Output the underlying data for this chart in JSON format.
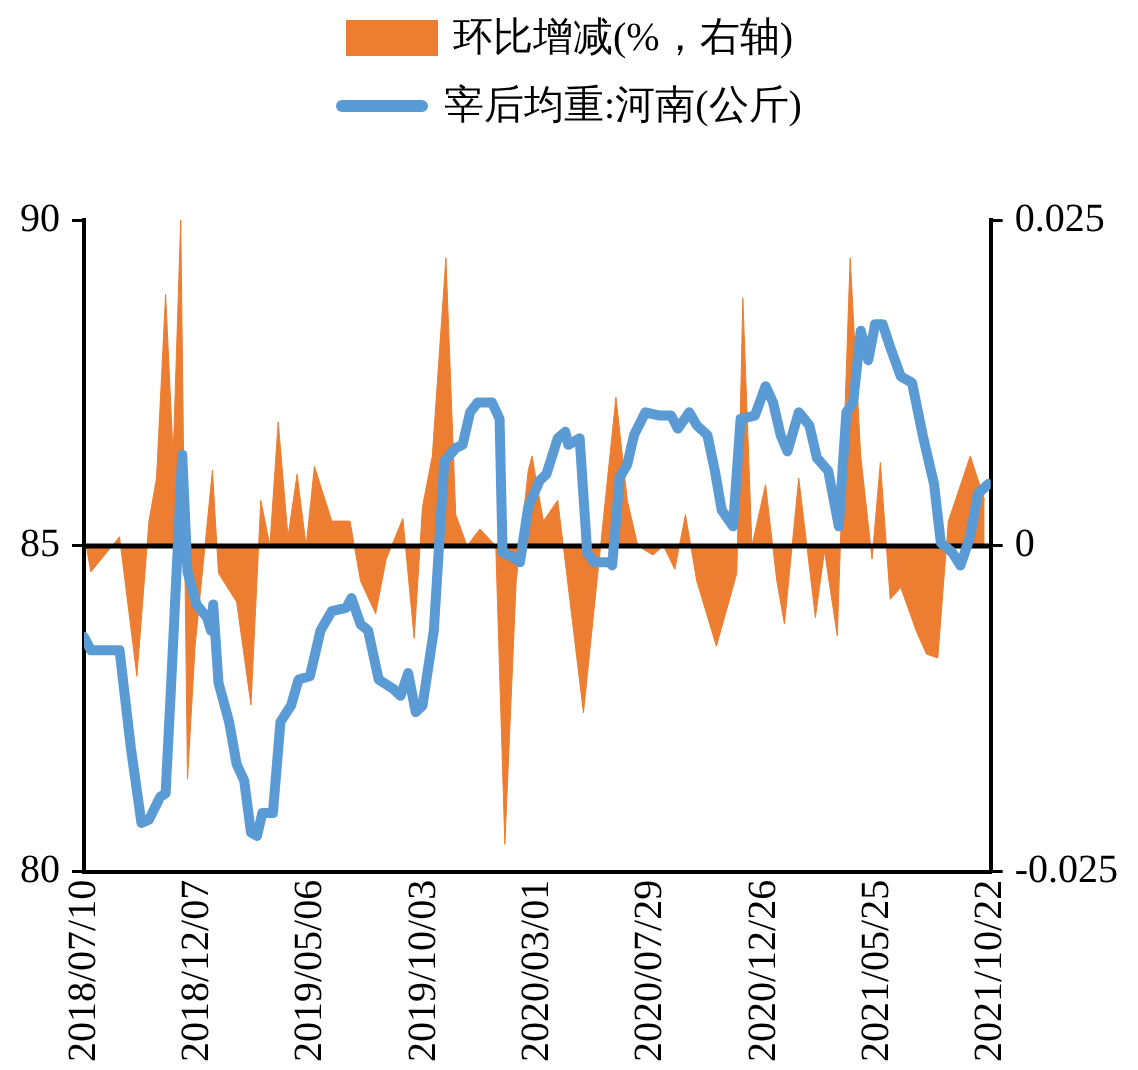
{
  "chart_data": {
    "type": "line",
    "legend": "top",
    "grid": false,
    "xlim": [
      "2018-07-10",
      "2021-10-22"
    ],
    "xticks": [
      {
        "value": "2018-07-10",
        "label": "2018/07/10"
      },
      {
        "value": "2018-12-07",
        "label": "2018/12/07"
      },
      {
        "value": "2019-05-06",
        "label": "2019/05/06"
      },
      {
        "value": "2019-10-03",
        "label": "2019/10/03"
      },
      {
        "value": "2020-03-01",
        "label": "2020/03/01"
      },
      {
        "value": "2020-07-29",
        "label": "2020/07/29"
      },
      {
        "value": "2020-12-26",
        "label": "2020/12/26"
      },
      {
        "value": "2021-05-25",
        "label": "2021/05/25"
      },
      {
        "value": "2021-10-22",
        "label": "2021/10/22"
      }
    ],
    "ylim": [
      80,
      90
    ],
    "yticks": [
      80,
      85,
      90
    ],
    "y2lim": [
      -0.025,
      0.025
    ],
    "y2ticks": [
      -0.025,
      0,
      0.025
    ],
    "ref_lines": [
      {
        "axis": "y2",
        "value": 0,
        "color": "#000000"
      }
    ],
    "series": [
      {
        "name": "环比增减(%，右轴)",
        "type": "area",
        "axis": "y2",
        "color": "#ed7d31",
        "x": [
          "2018-07-13",
          "2018-07-19",
          "2018-08-26",
          "2018-09-18",
          "2018-10-04",
          "2018-10-14",
          "2018-10-26",
          "2018-11-05",
          "2018-11-15",
          "2018-11-24",
          "2018-12-04",
          "2018-12-27",
          "2019-01-04",
          "2019-01-28",
          "2019-02-16",
          "2019-03-01",
          "2019-03-13",
          "2019-03-24",
          "2019-04-06",
          "2019-04-18",
          "2019-04-30",
          "2019-05-11",
          "2019-06-03",
          "2019-06-27",
          "2019-07-11",
          "2019-07-31",
          "2019-08-14",
          "2019-09-05",
          "2019-09-20",
          "2019-10-01",
          "2019-10-14",
          "2019-11-01",
          "2019-11-14",
          "2019-11-29",
          "2019-12-16",
          "2020-01-06",
          "2020-01-18",
          "2020-02-02",
          "2020-02-18",
          "2020-02-23",
          "2020-03-09",
          "2020-03-28",
          "2020-04-10",
          "2020-05-01",
          "2020-05-20",
          "2020-06-13",
          "2020-06-28",
          "2020-07-12",
          "2020-08-01",
          "2020-08-15",
          "2020-08-30",
          "2020-09-13",
          "2020-09-28",
          "2020-10-24",
          "2020-11-20",
          "2020-11-28",
          "2020-12-10",
          "2020-12-28",
          "2021-01-12",
          "2021-01-22",
          "2021-02-10",
          "2021-03-04",
          "2021-03-16",
          "2021-04-02",
          "2021-04-19",
          "2021-05-03",
          "2021-05-18",
          "2021-05-29",
          "2021-06-11",
          "2021-06-25",
          "2021-07-16",
          "2021-07-29",
          "2021-08-13",
          "2021-08-27",
          "2021-09-25",
          "2021-10-14"
        ],
        "values": [
          0,
          -0.002,
          0.0007,
          -0.01,
          0.0019,
          0.0052,
          0.0193,
          0.0069,
          0.025,
          -0.0179,
          -0.0077,
          0.0058,
          -0.0021,
          -0.0043,
          -0.0122,
          0.0035,
          0,
          0.0095,
          0.0007,
          0.0055,
          0,
          0.0061,
          0.0019,
          0.0019,
          -0.0027,
          -0.0052,
          -0.001,
          0.0021,
          -0.0071,
          0.003,
          0.0069,
          0.0221,
          0.0024,
          0,
          0.0013,
          0,
          -0.0229,
          -0.0027,
          0.0058,
          0.0069,
          0.0019,
          0.0035,
          -0.0027,
          -0.0128,
          -0.0021,
          0.0114,
          0.0035,
          0,
          -0.0007,
          0,
          -0.0018,
          0.0024,
          -0.0027,
          -0.0077,
          -0.0021,
          0.019,
          0,
          0.0047,
          -0.0027,
          -0.006,
          0.0052,
          -0.0055,
          -0.0004,
          -0.0069,
          0.0221,
          0.0069,
          -0.001,
          0.0064,
          -0.0041,
          -0.0032,
          -0.0066,
          -0.0083,
          -0.0086,
          0.0019,
          0.0069,
          0.0035
        ]
      },
      {
        "name": "宰后均重:河南(公斤)",
        "color": "#5b9bd5",
        "x": [
          "2018-07-10",
          "2018-07-19",
          "2018-08-26",
          "2018-09-02",
          "2018-09-10",
          "2018-09-24",
          "2018-10-04",
          "2018-10-19",
          "2018-10-26",
          "2018-11-02",
          "2018-11-17",
          "2018-11-24",
          "2018-12-06",
          "2018-12-20",
          "2018-12-25",
          "2018-12-28",
          "2019-01-04",
          "2019-01-18",
          "2019-01-28",
          "2019-02-07",
          "2019-02-16",
          "2019-02-24",
          "2019-03-03",
          "2019-03-17",
          "2019-03-27",
          "2019-04-10",
          "2019-04-20",
          "2019-05-05",
          "2019-05-19",
          "2019-06-03",
          "2019-06-22",
          "2019-06-29",
          "2019-07-11",
          "2019-07-21",
          "2019-08-04",
          "2019-08-24",
          "2019-09-02",
          "2019-09-12",
          "2019-09-22",
          "2019-10-01",
          "2019-10-16",
          "2019-10-25",
          "2019-10-30",
          "2019-11-14",
          "2019-11-23",
          "2019-12-03",
          "2019-12-13",
          "2020-01-01",
          "2020-01-11",
          "2020-01-15",
          "2020-01-25",
          "2020-02-07",
          "2020-02-18",
          "2020-03-04",
          "2020-03-13",
          "2020-03-28",
          "2020-04-07",
          "2020-04-11",
          "2020-04-26",
          "2020-05-06",
          "2020-05-15",
          "2020-06-04",
          "2020-06-08",
          "2020-06-18",
          "2020-06-28",
          "2020-07-07",
          "2020-07-22",
          "2020-08-10",
          "2020-08-25",
          "2020-09-03",
          "2020-09-18",
          "2020-09-28",
          "2020-10-12",
          "2020-10-22",
          "2020-10-31",
          "2020-11-15",
          "2020-11-25",
          "2020-12-14",
          "2020-12-28",
          "2021-01-07",
          "2021-01-17",
          "2021-01-26",
          "2021-02-10",
          "2021-02-24",
          "2021-03-06",
          "2021-03-21",
          "2021-04-04",
          "2021-04-14",
          "2021-04-23",
          "2021-05-03",
          "2021-05-13",
          "2021-05-22",
          "2021-06-01",
          "2021-06-11",
          "2021-06-25",
          "2021-07-10",
          "2021-07-24",
          "2021-08-08",
          "2021-08-17",
          "2021-09-01",
          "2021-09-12",
          "2021-09-25",
          "2021-10-05",
          "2021-10-19"
        ],
        "values": [
          83.6,
          83.4,
          83.4,
          82.7,
          81.9,
          80.75,
          80.8,
          81.15,
          81.2,
          82.8,
          86.4,
          84.6,
          84.1,
          83.9,
          83.7,
          84.1,
          82.9,
          82.3,
          81.65,
          81.4,
          80.6,
          80.55,
          80.9,
          80.9,
          82.3,
          82.55,
          82.95,
          83,
          83.7,
          84,
          84.05,
          84.2,
          83.8,
          83.7,
          82.95,
          82.8,
          82.7,
          83.05,
          82.45,
          82.55,
          83.7,
          85.4,
          86.3,
          86.5,
          86.55,
          87.05,
          87.2,
          87.2,
          86.95,
          84.9,
          84.85,
          84.75,
          85.6,
          86,
          86.1,
          86.65,
          86.75,
          86.55,
          86.65,
          84.9,
          84.75,
          84.75,
          84.7,
          86.05,
          86.25,
          86.7,
          87.05,
          87,
          87,
          86.8,
          87.05,
          86.85,
          86.7,
          86.15,
          85.55,
          85.3,
          86.95,
          87,
          87.45,
          87.2,
          86.7,
          86.45,
          87.05,
          86.85,
          86.35,
          86.15,
          85.3,
          87.05,
          87.2,
          88.3,
          87.85,
          88.4,
          88.4,
          88.05,
          87.6,
          87.5,
          86.7,
          85.95,
          85.05,
          84.9,
          84.7,
          85.15,
          85.8,
          85.95
        ]
      }
    ]
  }
}
